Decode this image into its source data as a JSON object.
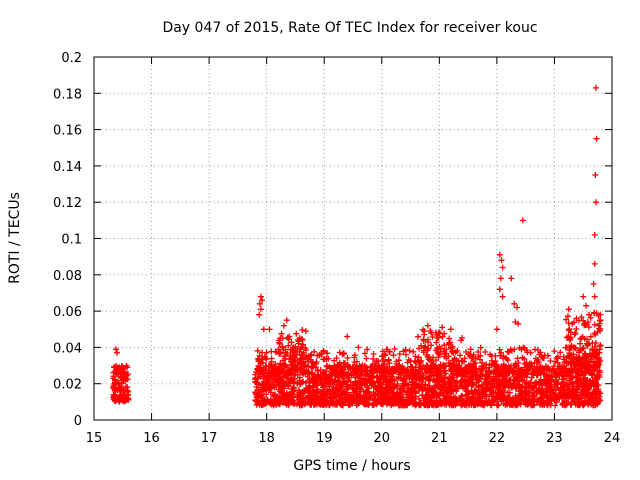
{
  "chart_data": {
    "type": "scatter",
    "title": "Day 047 of 2015, Rate Of TEC Index for receiver kouc",
    "xlabel": "GPS time / hours",
    "ylabel": "ROTI / TECUs",
    "xlim": [
      15,
      24
    ],
    "ylim": [
      0,
      0.2
    ],
    "x_ticks": [
      15,
      16,
      17,
      18,
      19,
      20,
      21,
      22,
      23,
      24
    ],
    "x_tick_labels": [
      "15",
      "16",
      "17",
      "18",
      "19",
      "20",
      "21",
      "22",
      "23",
      "24"
    ],
    "y_ticks": [
      0,
      0.02,
      0.04,
      0.06,
      0.08,
      0.1,
      0.12,
      0.14,
      0.16,
      0.18,
      0.2
    ],
    "y_tick_labels": [
      "0",
      "0.02",
      "0.04",
      "0.06",
      "0.08",
      "0.1",
      "0.12",
      "0.14",
      "0.16",
      "0.18",
      "0.2"
    ],
    "grid": true,
    "marker": "+",
    "color": "#ff0000",
    "series": [
      {
        "name": "ROTI",
        "dense_bands": [
          {
            "x_range": [
              15.33,
              15.6
            ],
            "y_range": [
              0.01,
              0.03
            ],
            "count": 120
          },
          {
            "x_range": [
              17.8,
              23.8
            ],
            "y_range": [
              0.008,
              0.03
            ],
            "count": 2600
          },
          {
            "x_range": [
              17.8,
              23.8
            ],
            "y_range": [
              0.025,
              0.04
            ],
            "count": 500
          },
          {
            "x_range": [
              18.2,
              18.7
            ],
            "y_range": [
              0.03,
              0.05
            ],
            "count": 60
          },
          {
            "x_range": [
              20.6,
              21.4
            ],
            "y_range": [
              0.03,
              0.05
            ],
            "count": 60
          },
          {
            "x_range": [
              23.2,
              23.8
            ],
            "y_range": [
              0.03,
              0.06
            ],
            "count": 120
          }
        ],
        "notable_points": [
          {
            "x": 15.38,
            "y": 0.039
          },
          {
            "x": 15.4,
            "y": 0.037
          },
          {
            "x": 17.9,
            "y": 0.068
          },
          {
            "x": 17.92,
            "y": 0.066
          },
          {
            "x": 17.88,
            "y": 0.064
          },
          {
            "x": 17.9,
            "y": 0.061
          },
          {
            "x": 17.87,
            "y": 0.058
          },
          {
            "x": 17.95,
            "y": 0.05
          },
          {
            "x": 18.05,
            "y": 0.05
          },
          {
            "x": 18.35,
            "y": 0.055
          },
          {
            "x": 18.3,
            "y": 0.052
          },
          {
            "x": 19.4,
            "y": 0.046
          },
          {
            "x": 20.8,
            "y": 0.052
          },
          {
            "x": 21.2,
            "y": 0.05
          },
          {
            "x": 20.95,
            "y": 0.047
          },
          {
            "x": 21.05,
            "y": 0.051
          },
          {
            "x": 22.05,
            "y": 0.091
          },
          {
            "x": 22.08,
            "y": 0.088
          },
          {
            "x": 22.1,
            "y": 0.084
          },
          {
            "x": 22.07,
            "y": 0.078
          },
          {
            "x": 22.05,
            "y": 0.072
          },
          {
            "x": 22.1,
            "y": 0.068
          },
          {
            "x": 22.25,
            "y": 0.078
          },
          {
            "x": 22.3,
            "y": 0.064
          },
          {
            "x": 22.35,
            "y": 0.062
          },
          {
            "x": 22.32,
            "y": 0.054
          },
          {
            "x": 22.37,
            "y": 0.053
          },
          {
            "x": 22.45,
            "y": 0.11
          },
          {
            "x": 22.0,
            "y": 0.05
          },
          {
            "x": 23.25,
            "y": 0.061
          },
          {
            "x": 23.5,
            "y": 0.068
          },
          {
            "x": 23.55,
            "y": 0.063
          },
          {
            "x": 23.6,
            "y": 0.058
          },
          {
            "x": 23.72,
            "y": 0.183
          },
          {
            "x": 23.73,
            "y": 0.155
          },
          {
            "x": 23.71,
            "y": 0.135
          },
          {
            "x": 23.72,
            "y": 0.12
          },
          {
            "x": 23.7,
            "y": 0.102
          },
          {
            "x": 23.7,
            "y": 0.086
          },
          {
            "x": 23.68,
            "y": 0.075
          },
          {
            "x": 23.7,
            "y": 0.068
          }
        ]
      }
    ]
  }
}
